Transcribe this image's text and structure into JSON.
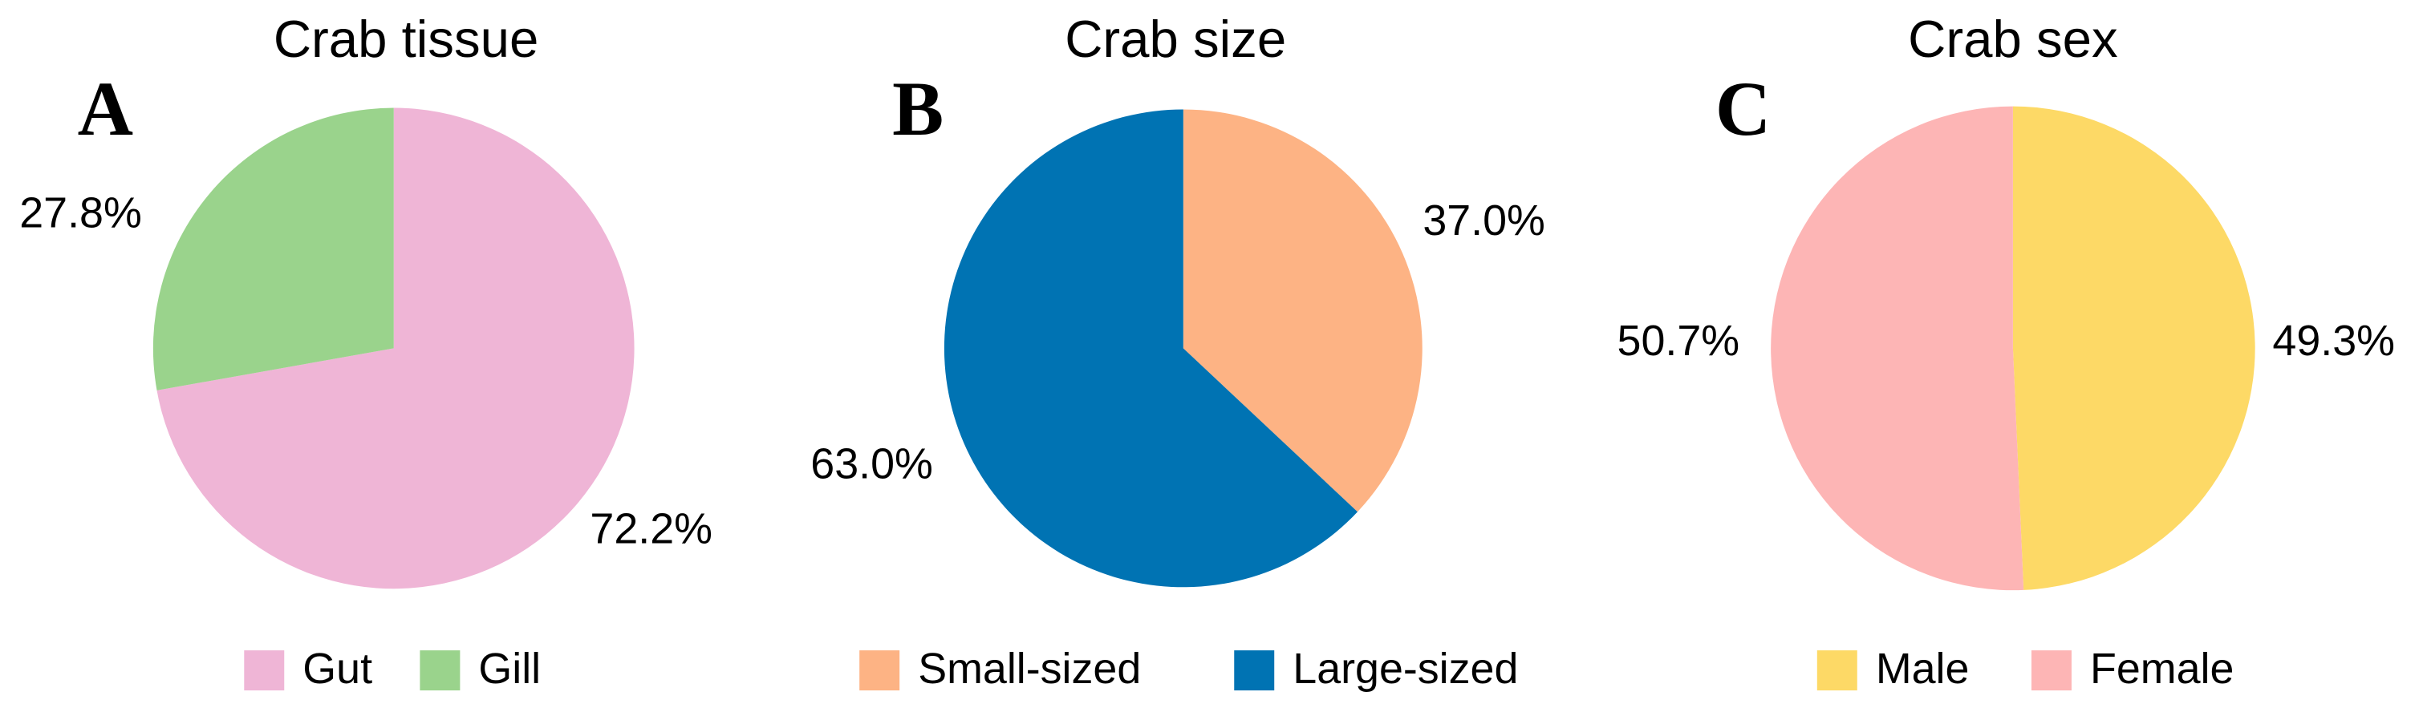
{
  "chart_data": [
    {
      "type": "pie",
      "panel_label": "A",
      "title": "Crab tissue",
      "categories": [
        "Gut",
        "Gill"
      ],
      "values": [
        72.2,
        27.8
      ],
      "value_labels": [
        "72.2%",
        "27.8%"
      ],
      "colors": [
        "#efb5d6",
        "#9ad38c"
      ]
    },
    {
      "type": "pie",
      "panel_label": "B",
      "title": "Crab size",
      "categories": [
        "Small-sized",
        "Large-sized"
      ],
      "values": [
        37.0,
        63.0
      ],
      "value_labels": [
        "37.0%",
        "63.0%"
      ],
      "colors": [
        "#fdb384",
        "#0073b3"
      ]
    },
    {
      "type": "pie",
      "panel_label": "C",
      "title": "Crab sex",
      "categories": [
        "Male",
        "Female"
      ],
      "values": [
        49.3,
        50.7
      ],
      "value_labels": [
        "49.3%",
        "50.7%"
      ],
      "colors": [
        "#fdd966",
        "#fdb5b5"
      ]
    }
  ]
}
